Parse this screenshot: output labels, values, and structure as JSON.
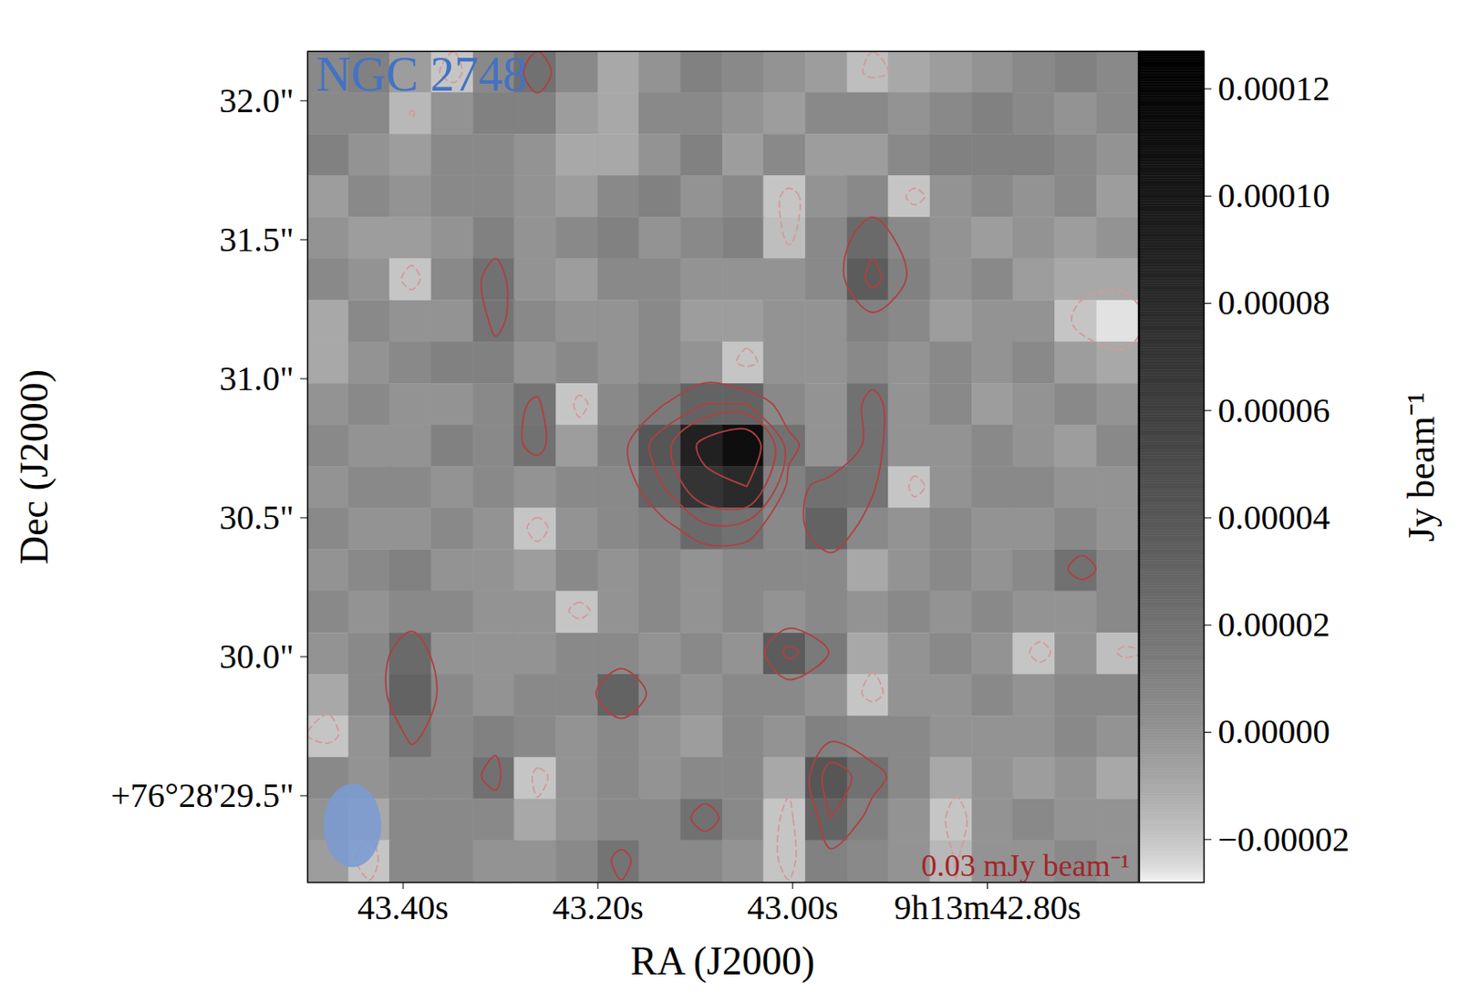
{
  "chart_data": {
    "type": "heatmap",
    "title": "NGC 2748",
    "xlabel": "RA (J2000)",
    "ylabel": "Dec (J2000)",
    "xlim": [
      43.498,
      42.645
    ],
    "ylim": [
      29.188,
      32.178
    ],
    "xticks": [
      {
        "value": 43.4,
        "label": "43.40s"
      },
      {
        "value": 43.2,
        "label": "43.20s"
      },
      {
        "value": 43.0,
        "label": "43.00s"
      },
      {
        "value": 42.8,
        "label": "9h13m42.80s"
      }
    ],
    "yticks": [
      {
        "value": 29.5,
        "label": "+76°28'29.5\""
      },
      {
        "value": 30.0,
        "label": "30.0\""
      },
      {
        "value": 30.5,
        "label": "30.5\""
      },
      {
        "value": 31.0,
        "label": "31.0\""
      },
      {
        "value": 31.5,
        "label": "31.5\""
      },
      {
        "value": 32.0,
        "label": "32.0\""
      }
    ],
    "annotation": "0.03 mJy beam⁻¹",
    "contour_levels": [
      -1.5e-05,
      1.5e-05,
      3e-05,
      5e-05,
      8e-05
    ],
    "beam": {
      "ra": 43.452,
      "dec": 29.393,
      "width": 0.059,
      "height": 0.3
    },
    "colorbar": {
      "label": "Jy beam⁻¹",
      "lim": [
        -2.8e-05,
        0.000127
      ],
      "ticks": [
        {
          "value": -2e-05,
          "label": "−0.00002"
        },
        {
          "value": 0,
          "label": "0.00000"
        },
        {
          "value": 2e-05,
          "label": "0.00002"
        },
        {
          "value": 4e-05,
          "label": "0.00004"
        },
        {
          "value": 6e-05,
          "label": "0.00006"
        },
        {
          "value": 8e-05,
          "label": "0.00008"
        },
        {
          "value": 0.0001,
          "label": "0.00010"
        },
        {
          "value": 0.00012,
          "label": "0.00012"
        }
      ]
    },
    "image": {
      "ra": [
        43.477,
        43.434,
        43.392,
        43.349,
        43.306,
        43.264,
        43.221,
        43.178,
        43.136,
        43.093,
        43.05,
        43.008,
        42.965,
        42.922,
        42.88,
        42.837,
        42.794,
        42.752,
        42.709,
        42.666
      ],
      "dec": [
        32.103,
        31.954,
        31.804,
        31.655,
        31.505,
        31.356,
        31.206,
        31.057,
        30.907,
        30.758,
        30.608,
        30.459,
        30.309,
        30.16,
        30.01,
        29.861,
        29.711,
        29.562,
        29.412,
        29.263
      ],
      "values": [
        [
          5e-06,
          1e-05,
          -5e-06,
          -2e-05,
          5e-06,
          2e-05,
          5e-06,
          -1e-05,
          0,
          1e-05,
          5e-06,
          0,
          -5e-06,
          -1.8e-05,
          -1e-05,
          -5e-06,
          0,
          5e-06,
          1e-05,
          5e-06
        ],
        [
          5e-06,
          5e-06,
          -1.6e-05,
          0,
          1e-05,
          1e-05,
          -5e-06,
          -1e-05,
          5e-06,
          5e-06,
          0,
          -5e-06,
          5e-06,
          5e-06,
          0,
          5e-06,
          1e-05,
          5e-06,
          0,
          5e-06
        ],
        [
          1e-05,
          0,
          -5e-06,
          5e-06,
          5e-06,
          0,
          -1e-05,
          -1e-05,
          0,
          1e-05,
          -5e-06,
          5e-06,
          -5e-06,
          -5e-06,
          5e-06,
          1e-05,
          1e-05,
          1e-05,
          5e-06,
          0
        ],
        [
          -5e-06,
          5e-06,
          0,
          5e-06,
          5e-06,
          0,
          -5e-06,
          5e-06,
          1e-05,
          0,
          5e-06,
          -2e-05,
          0,
          5e-06,
          -2e-05,
          0,
          5e-06,
          0,
          5e-06,
          -5e-06
        ],
        [
          0,
          -5e-06,
          -5e-06,
          0,
          1e-05,
          0,
          5e-06,
          1e-05,
          0,
          5e-06,
          1e-05,
          -1.8e-05,
          5e-06,
          2.5e-05,
          5e-06,
          0,
          -5e-06,
          0,
          -5e-06,
          0
        ],
        [
          5e-06,
          0,
          -2e-05,
          5e-06,
          2e-05,
          0,
          -5e-06,
          5e-06,
          5e-06,
          0,
          0,
          0,
          5e-06,
          3.5e-05,
          1e-05,
          0,
          5e-06,
          -5e-06,
          -1e-05,
          -1e-05
        ],
        [
          -1e-05,
          5e-06,
          0,
          0,
          1.8e-05,
          5e-06,
          0,
          0,
          5e-06,
          -5e-06,
          -5e-06,
          0,
          0,
          1e-05,
          5e-06,
          -5e-06,
          0,
          0,
          -2e-05,
          -2.6e-05
        ],
        [
          -1e-05,
          0,
          5e-06,
          1e-05,
          1e-05,
          0,
          5e-06,
          0,
          5e-06,
          0,
          -2e-05,
          0,
          0,
          5e-06,
          0,
          5e-06,
          0,
          5e-06,
          -5e-06,
          -1e-05
        ],
        [
          0,
          5e-06,
          0,
          0,
          5e-06,
          1.8e-05,
          -2e-05,
          5e-06,
          1.4e-05,
          3e-05,
          3e-05,
          5e-06,
          0,
          2e-05,
          0,
          5e-06,
          -5e-06,
          0,
          5e-06,
          0
        ],
        [
          5e-06,
          0,
          0,
          1e-05,
          5e-06,
          2e-05,
          -5e-06,
          1e-05,
          4e-05,
          9e-05,
          0.00011,
          2e-05,
          0,
          2e-05,
          0,
          0,
          5e-06,
          0,
          -5e-06,
          5e-06
        ],
        [
          0,
          5e-06,
          5e-06,
          0,
          5e-06,
          0,
          5e-06,
          5e-06,
          3e-05,
          7e-05,
          8e-05,
          1e-05,
          2e-05,
          1.8e-05,
          -2e-05,
          0,
          5e-06,
          5e-06,
          0,
          0
        ],
        [
          5e-06,
          0,
          0,
          5e-06,
          0,
          -2e-05,
          0,
          5e-06,
          1e-05,
          2.5e-05,
          2e-05,
          5e-06,
          3e-05,
          5e-06,
          0,
          5e-06,
          0,
          0,
          5e-06,
          0
        ],
        [
          0,
          5e-06,
          1e-05,
          0,
          0,
          -5e-06,
          5e-06,
          0,
          5e-06,
          0,
          5e-06,
          5e-06,
          5e-06,
          -1e-05,
          0,
          5e-06,
          0,
          5e-06,
          2e-05,
          5e-06
        ],
        [
          5e-06,
          0,
          5e-06,
          5e-06,
          0,
          0,
          -2e-05,
          0,
          5e-06,
          0,
          5e-06,
          0,
          5e-06,
          0,
          5e-06,
          0,
          5e-06,
          0,
          0,
          5e-06
        ],
        [
          0,
          5e-06,
          2.5e-05,
          0,
          0,
          0,
          5e-06,
          5e-06,
          0,
          5e-06,
          0,
          3.5e-05,
          1.4e-05,
          -1e-05,
          0,
          5e-06,
          0,
          -2e-05,
          0,
          -1.8e-05
        ],
        [
          -1e-05,
          5e-06,
          3e-05,
          5e-06,
          0,
          5e-06,
          5e-06,
          3e-05,
          5e-06,
          0,
          5e-06,
          5e-06,
          0,
          -2e-05,
          0,
          0,
          5e-06,
          0,
          5e-06,
          5e-06
        ],
        [
          -2e-05,
          0,
          1.8e-05,
          5e-06,
          1e-05,
          5e-06,
          0,
          5e-06,
          0,
          -5e-06,
          5e-06,
          0,
          1e-05,
          5e-06,
          5e-06,
          0,
          0,
          0,
          5e-06,
          0
        ],
        [
          5e-06,
          0,
          5e-06,
          5e-06,
          2e-05,
          -2e-05,
          0,
          5e-06,
          0,
          5e-06,
          5e-06,
          -1e-05,
          4e-05,
          2e-05,
          5e-06,
          -1e-05,
          0,
          -5e-06,
          0,
          -1e-05
        ],
        [
          0,
          -1e-05,
          5e-06,
          5e-06,
          5e-06,
          -1e-05,
          0,
          5e-06,
          5e-06,
          2e-05,
          5e-06,
          -2e-05,
          3e-05,
          1e-05,
          0,
          -2e-05,
          0,
          5e-06,
          0,
          0
        ],
        [
          -5e-06,
          -2e-05,
          5e-06,
          5e-06,
          0,
          0,
          5e-06,
          1.8e-05,
          5e-06,
          5e-06,
          0,
          -2e-05,
          1e-05,
          5e-06,
          0,
          -1.6e-05,
          0,
          0,
          5e-06,
          0
        ]
      ]
    }
  }
}
